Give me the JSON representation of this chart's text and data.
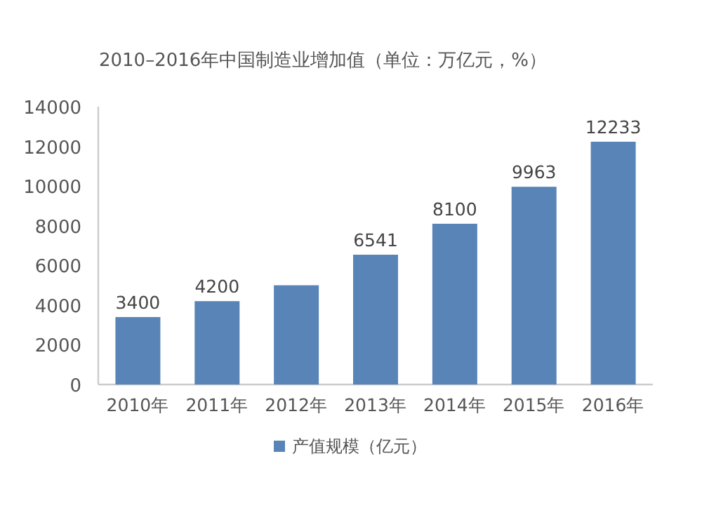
{
  "chart_data": {
    "type": "bar",
    "title": "2010–2016年中国制造业增加值（单位：万亿元，%）",
    "categories": [
      "2010年",
      "2011年",
      "2012年",
      "2013年",
      "2014年",
      "2015年",
      "2016年"
    ],
    "series": [
      {
        "name": "产值规模（亿元）",
        "color": "#5884b8",
        "values": [
          3400,
          4200,
          5000,
          6541,
          8100,
          9963,
          12233
        ],
        "value_labels": [
          "3400",
          "4200",
          null,
          "6541",
          "8100",
          "9963",
          "12233"
        ]
      }
    ],
    "ylim": [
      0,
      14000
    ],
    "yticks": [
      0,
      2000,
      4000,
      6000,
      8000,
      10000,
      12000,
      14000
    ],
    "grid": false,
    "legend": "bottom"
  }
}
